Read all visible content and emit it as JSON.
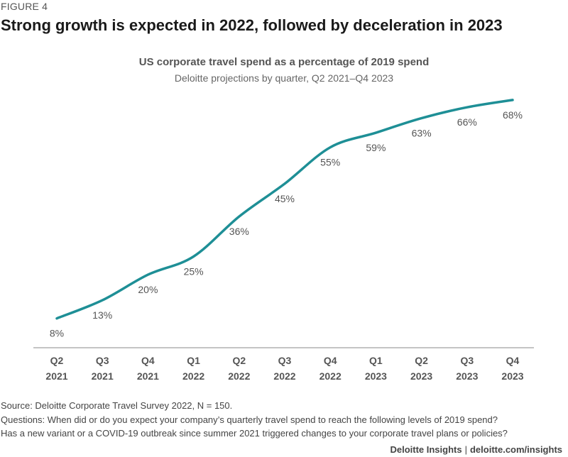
{
  "figure_label": "FIGURE 4",
  "headline": "Strong growth is expected in 2022, followed by deceleration in 2023",
  "footer": {
    "source": "Source: Deloitte Corporate Travel Survey 2022, N = 150.",
    "question_1": "Questions: When did or do you expect your company’s quarterly travel spend to reach the following levels of 2019 spend?",
    "question_2": "Has a new variant or a COVID-19 outbreak since summer 2021 triggered changes to your corporate travel plans or policies?",
    "brand": "Deloitte Insights",
    "separator": "|",
    "url": "deloitte.com/insights"
  },
  "colors": {
    "line": "#1e8f96",
    "axis": "#b0b0b0",
    "label": "#555555"
  },
  "chart_data": {
    "type": "line",
    "title": "US corporate travel spend as a percentage of 2019 spend",
    "subtitle": "Deloitte projections by quarter, Q2 2021–Q4 2023",
    "categories": [
      {
        "q": "Q2",
        "y": "2021"
      },
      {
        "q": "Q3",
        "y": "2021"
      },
      {
        "q": "Q4",
        "y": "2021"
      },
      {
        "q": "Q1",
        "y": "2022"
      },
      {
        "q": "Q2",
        "y": "2022"
      },
      {
        "q": "Q3",
        "y": "2022"
      },
      {
        "q": "Q4",
        "y": "2022"
      },
      {
        "q": "Q1",
        "y": "2023"
      },
      {
        "q": "Q2",
        "y": "2023"
      },
      {
        "q": "Q3",
        "y": "2023"
      },
      {
        "q": "Q4",
        "y": "2023"
      }
    ],
    "values": [
      8,
      13,
      20,
      25,
      36,
      45,
      55,
      59,
      63,
      66,
      68
    ],
    "data_labels": [
      "8%",
      "13%",
      "20%",
      "25%",
      "36%",
      "45%",
      "55%",
      "59%",
      "63%",
      "66%",
      "68%"
    ],
    "xlabel": "",
    "ylabel": "",
    "ylim": [
      0,
      70
    ],
    "grid": false,
    "legend": "none"
  }
}
